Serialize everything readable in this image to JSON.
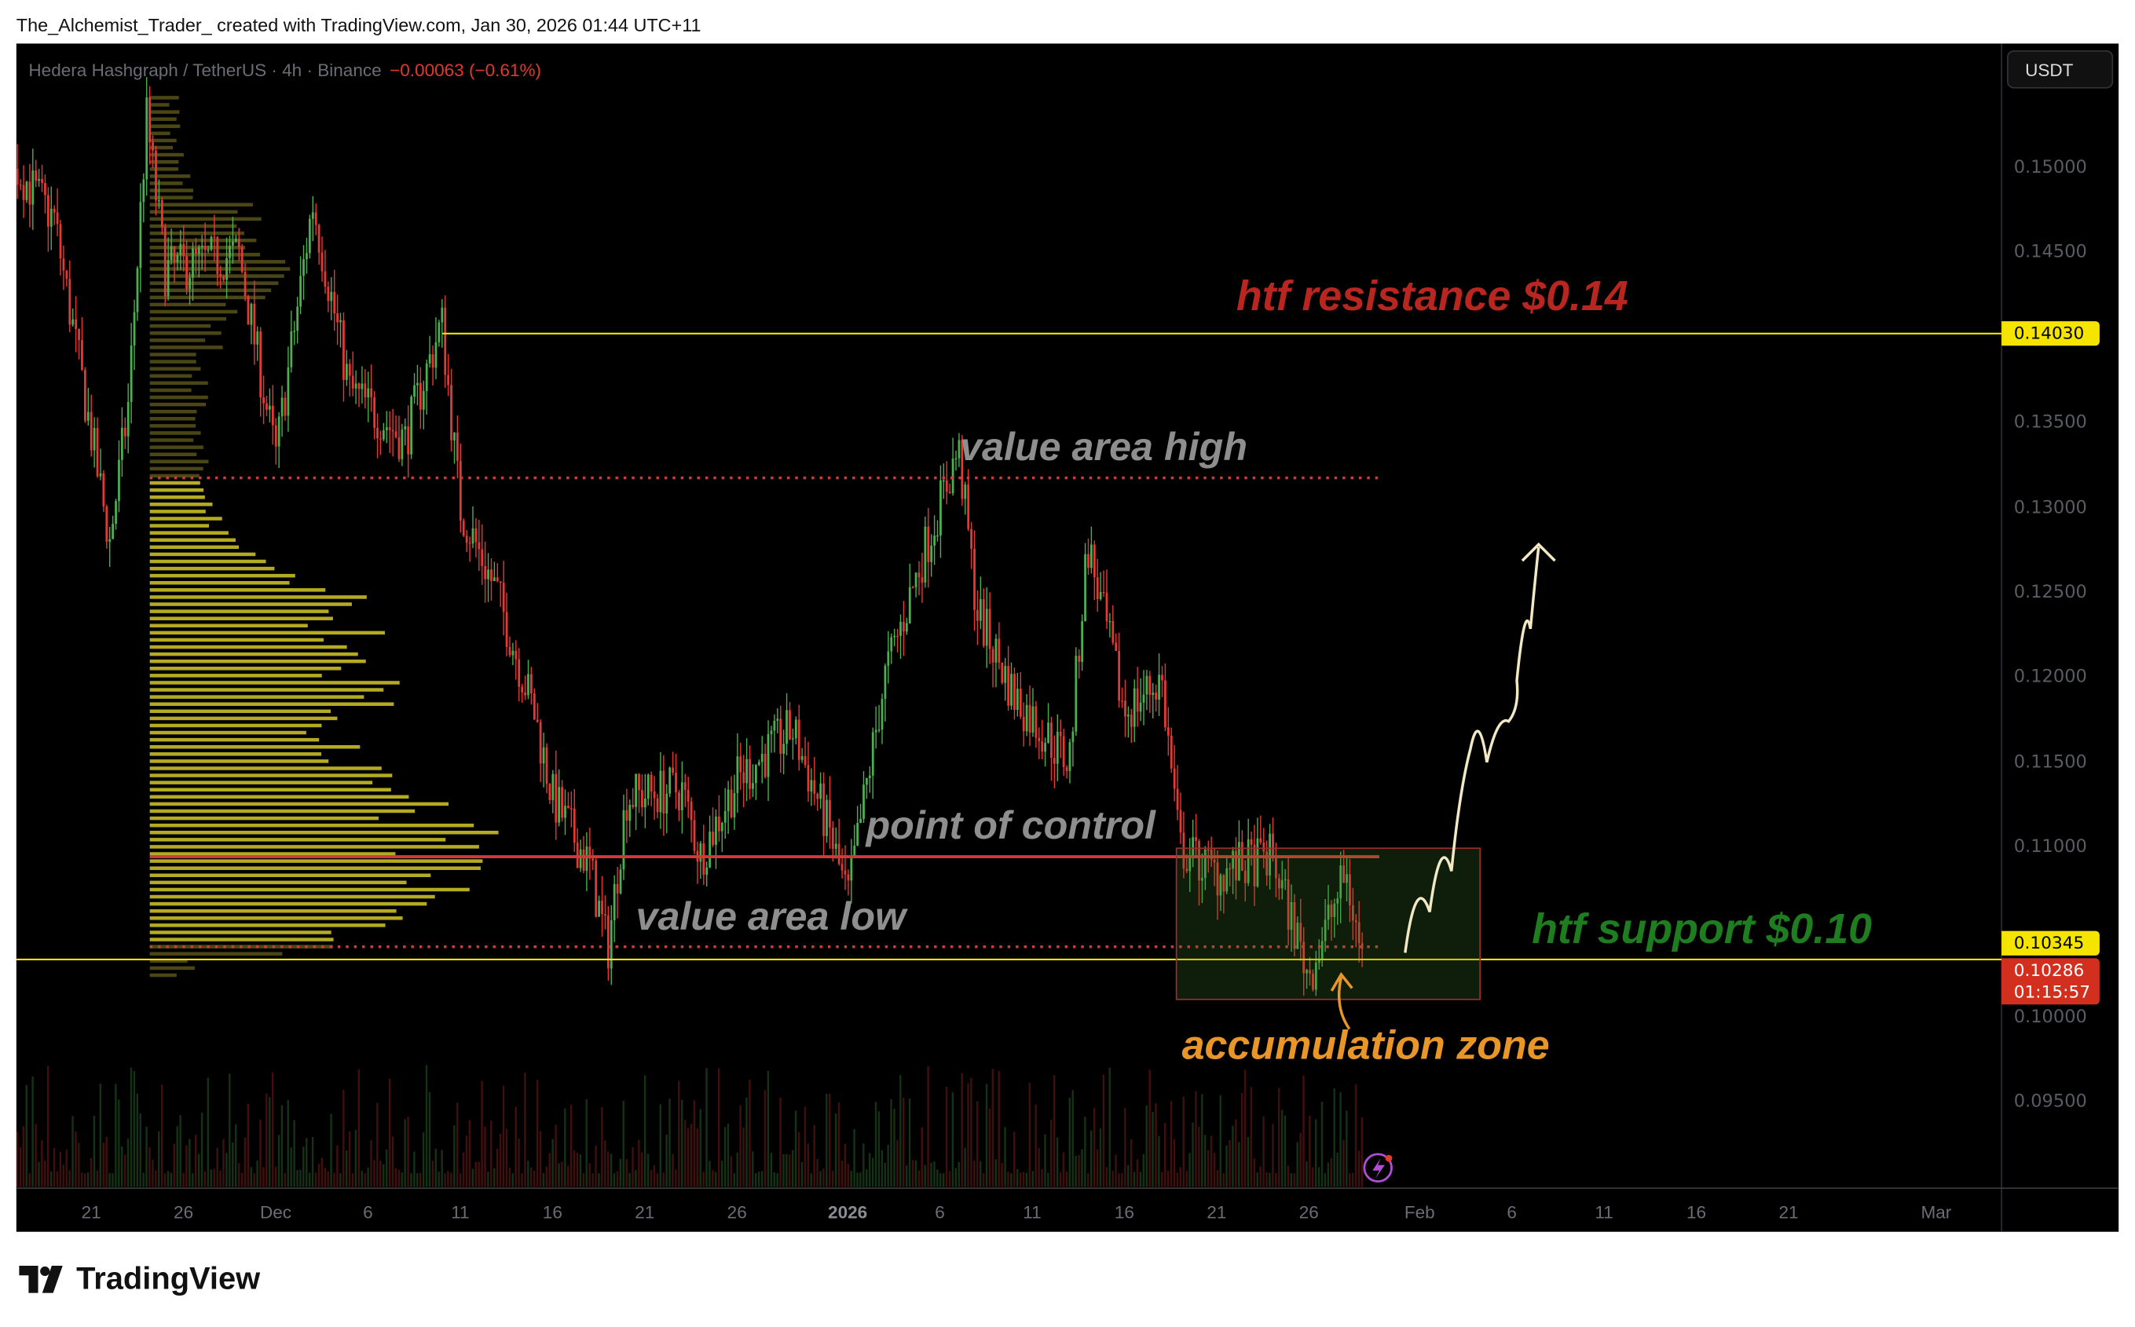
{
  "credit": "The_Alchemist_Trader_ created with TradingView.com, Jan 30, 2026 01:44 UTC+11",
  "symbol_legend": {
    "title": "Hedera Hashgraph / TetherUS · 4h · Binance",
    "change": "−0.00063 (−0.61%)",
    "change_color": "#e0392f"
  },
  "currency_button": "USDT",
  "brand": "TradingView",
  "chart_data": {
    "type": "candlestick",
    "interval": "4h",
    "ylim": [
      0.0905,
      0.1545
    ],
    "y_ticks": [
      "0.15000",
      "0.14500",
      "0.13500",
      "0.13000",
      "0.12500",
      "0.12000",
      "0.11500",
      "0.11000",
      "0.10000",
      "0.09500"
    ],
    "x_ticks": [
      {
        "label": "21",
        "date": "2025-11-21"
      },
      {
        "label": "26",
        "date": "2025-11-26"
      },
      {
        "label": "Dec",
        "date": "2025-12-01"
      },
      {
        "label": "6",
        "date": "2025-12-06"
      },
      {
        "label": "11",
        "date": "2025-12-11"
      },
      {
        "label": "16",
        "date": "2025-12-16"
      },
      {
        "label": "21",
        "date": "2025-12-21"
      },
      {
        "label": "26",
        "date": "2025-12-26"
      },
      {
        "label": "2026",
        "date": "2026-01-01",
        "bold": true
      },
      {
        "label": "6",
        "date": "2026-01-06"
      },
      {
        "label": "11",
        "date": "2026-01-11"
      },
      {
        "label": "16",
        "date": "2026-01-16"
      },
      {
        "label": "21",
        "date": "2026-01-21"
      },
      {
        "label": "26",
        "date": "2026-01-26"
      },
      {
        "label": "Feb",
        "date": "2026-02-01"
      },
      {
        "label": "6",
        "date": "2026-02-06"
      },
      {
        "label": "11",
        "date": "2026-02-11"
      },
      {
        "label": "16",
        "date": "2026-02-16"
      },
      {
        "label": "21",
        "date": "2026-02-21"
      },
      {
        "label": "Mar",
        "date": "2026-03-01"
      }
    ],
    "price_path": [
      [
        "2025-11-17",
        0.15
      ],
      [
        "2025-11-19",
        0.147
      ],
      [
        "2025-11-22",
        0.128
      ],
      [
        "2025-11-23",
        0.136
      ],
      [
        "2025-11-24",
        0.153
      ],
      [
        "2025-11-25",
        0.144
      ],
      [
        "2025-11-29",
        0.145
      ],
      [
        "2025-12-01",
        0.133
      ],
      [
        "2025-12-03",
        0.148
      ],
      [
        "2025-12-05",
        0.137
      ],
      [
        "2025-12-08",
        0.134
      ],
      [
        "2025-12-10",
        0.141
      ],
      [
        "2025-12-11",
        0.13
      ],
      [
        "2025-12-13",
        0.125
      ],
      [
        "2025-12-15",
        0.118
      ],
      [
        "2025-12-16",
        0.113
      ],
      [
        "2025-12-18",
        0.109
      ],
      [
        "2025-12-19",
        0.104
      ],
      [
        "2025-12-20",
        0.113
      ],
      [
        "2025-12-23",
        0.1135
      ],
      [
        "2025-12-24",
        0.1095
      ],
      [
        "2025-12-26",
        0.114
      ],
      [
        "2025-12-29",
        0.117
      ],
      [
        "2025-12-31",
        0.111
      ],
      [
        "2026-01-01",
        0.107
      ],
      [
        "2026-01-03",
        0.12
      ],
      [
        "2026-01-05",
        0.127
      ],
      [
        "2026-01-07",
        0.1335
      ],
      [
        "2026-01-08",
        0.124
      ],
      [
        "2026-01-10",
        0.119
      ],
      [
        "2026-01-13",
        0.115
      ],
      [
        "2026-01-14",
        0.128
      ],
      [
        "2026-01-16",
        0.118
      ],
      [
        "2026-01-18",
        0.12
      ],
      [
        "2026-01-19",
        0.11
      ],
      [
        "2026-01-21",
        0.1085
      ],
      [
        "2026-01-24",
        0.1095
      ],
      [
        "2026-01-26",
        0.1025
      ],
      [
        "2026-01-28",
        0.1085
      ],
      [
        "2026-01-29",
        0.1029
      ]
    ],
    "colors": {
      "up": "#4caf50",
      "down": "#e53935"
    },
    "last_price": "0.10286",
    "countdown": "01:15:57",
    "volume_profile": {
      "vah": 0.1318,
      "poc": 0.1095,
      "val": 0.1042,
      "value_area_color": "#d4c928",
      "outside_color": "#6b6420"
    }
  },
  "annotations": {
    "resistance": {
      "label": "htf resistance $0.14",
      "price": 0.1403,
      "tag": "0.14030",
      "color": "#b8261f"
    },
    "support": {
      "label": "htf support $0.10",
      "price": 0.10345,
      "tag": "0.10345",
      "color": "#1e7d1e"
    },
    "vah_label": "value area high",
    "poc_label": "point of control",
    "val_label": "value area low",
    "accumulation": {
      "label": "accumulation zone",
      "color": "#e8962a",
      "top": 0.11,
      "bottom": 0.1011
    },
    "line_color": "#f5e400",
    "profile_line_color": "#d23a3a",
    "projection_color": "#f2e9c4"
  }
}
